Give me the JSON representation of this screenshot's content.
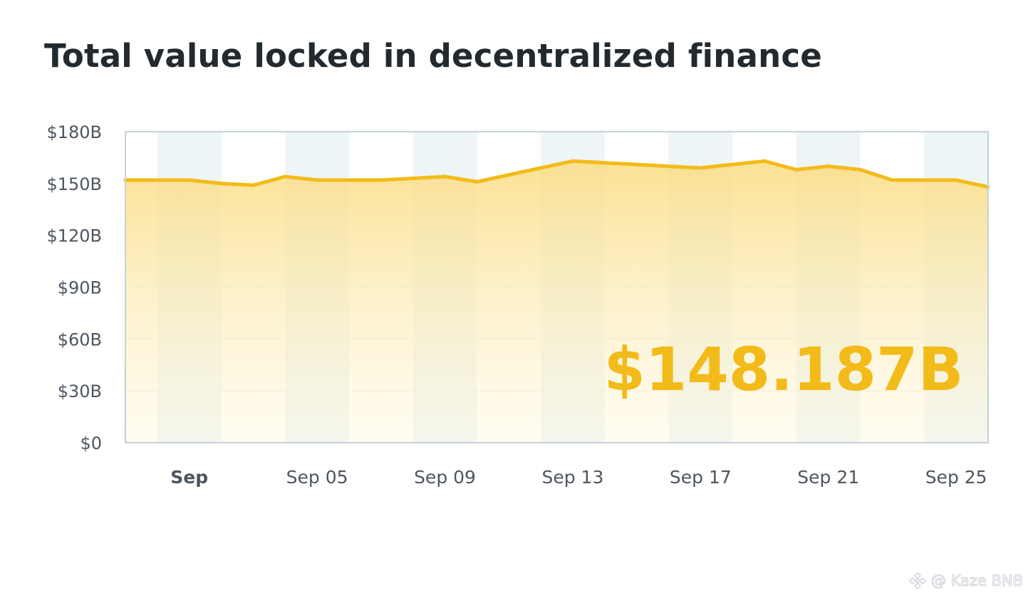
{
  "chart_data": {
    "type": "area",
    "title": "Total value locked in decentralized finance",
    "xlabel": "",
    "ylabel": "",
    "ylim": [
      0,
      180
    ],
    "y_unit": "billion USD",
    "y_ticks": [
      {
        "value": 0,
        "label": "$0"
      },
      {
        "value": 30,
        "label": "$30B"
      },
      {
        "value": 60,
        "label": "$60B"
      },
      {
        "value": 90,
        "label": "$90B"
      },
      {
        "value": 120,
        "label": "$120B"
      },
      {
        "value": 150,
        "label": "$150B"
      },
      {
        "value": 180,
        "label": "$180B"
      }
    ],
    "x_ticks": [
      {
        "date": "2021-09-01",
        "label": "Sep",
        "bold": true
      },
      {
        "date": "2021-09-05",
        "label": "Sep 05",
        "bold": false
      },
      {
        "date": "2021-09-09",
        "label": "Sep 09",
        "bold": false
      },
      {
        "date": "2021-09-13",
        "label": "Sep 13",
        "bold": false
      },
      {
        "date": "2021-09-17",
        "label": "Sep 17",
        "bold": false
      },
      {
        "date": "2021-09-21",
        "label": "Sep 21",
        "bold": false
      },
      {
        "date": "2021-09-25",
        "label": "Sep 25",
        "bold": false
      }
    ],
    "x": [
      "2021-08-30",
      "2021-08-31",
      "2021-09-01",
      "2021-09-02",
      "2021-09-03",
      "2021-09-04",
      "2021-09-05",
      "2021-09-06",
      "2021-09-07",
      "2021-09-08",
      "2021-09-09",
      "2021-09-10",
      "2021-09-11",
      "2021-09-12",
      "2021-09-13",
      "2021-09-14",
      "2021-09-15",
      "2021-09-16",
      "2021-09-17",
      "2021-09-18",
      "2021-09-19",
      "2021-09-20",
      "2021-09-21",
      "2021-09-22",
      "2021-09-23",
      "2021-09-24",
      "2021-09-25",
      "2021-09-26"
    ],
    "series": [
      {
        "values": [
          152,
          152,
          152,
          150,
          149,
          154,
          152,
          152,
          152,
          153,
          154,
          151,
          155,
          159,
          163,
          162,
          161,
          160,
          159,
          161,
          163,
          158,
          160,
          158,
          152,
          152,
          152,
          148
        ],
        "color": "#f2bb1a"
      }
    ],
    "highlight_value": "$148.187B",
    "grid": true,
    "alternating_column_shading": true,
    "colors": {
      "line": "#f2bb1a",
      "fill_top": "#fbdc80",
      "fill_bottom": "#fff8dc",
      "stripe": "#eef5f7",
      "frame": "#c6d2d6"
    }
  },
  "watermark": "@ Kaze BNB"
}
